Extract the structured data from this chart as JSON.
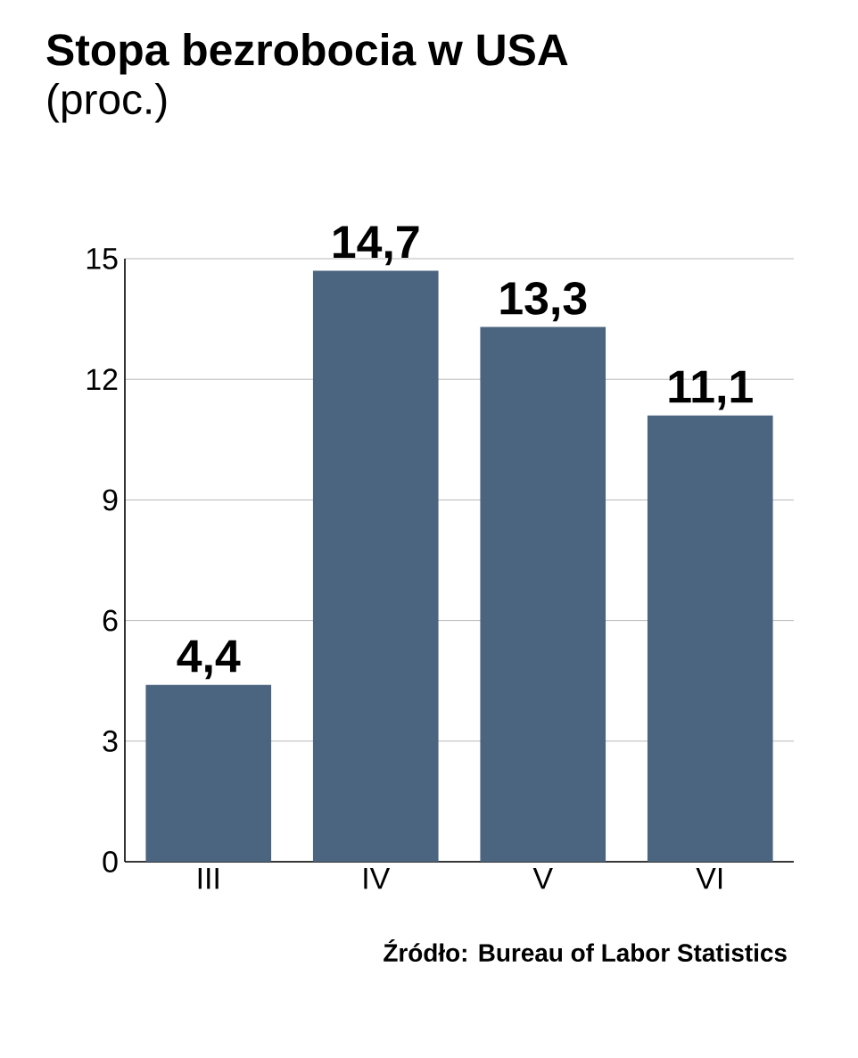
{
  "chart_data": {
    "type": "bar",
    "title": "Stopa bezrobocia w USA",
    "subtitle": "(proc.)",
    "categories": [
      "III",
      "IV",
      "V",
      "VI"
    ],
    "values": [
      4.4,
      14.7,
      13.3,
      11.1
    ],
    "color": "#4b647f",
    "value_labels": [
      "4,4",
      "14,7",
      "13,3",
      "11,1"
    ],
    "ylim": [
      0,
      15
    ],
    "yticks": [
      0,
      3,
      6,
      9,
      12,
      15
    ],
    "grid": "y",
    "annotations": [
      "Źródło: Bureau of Labor Statistics"
    ]
  }
}
